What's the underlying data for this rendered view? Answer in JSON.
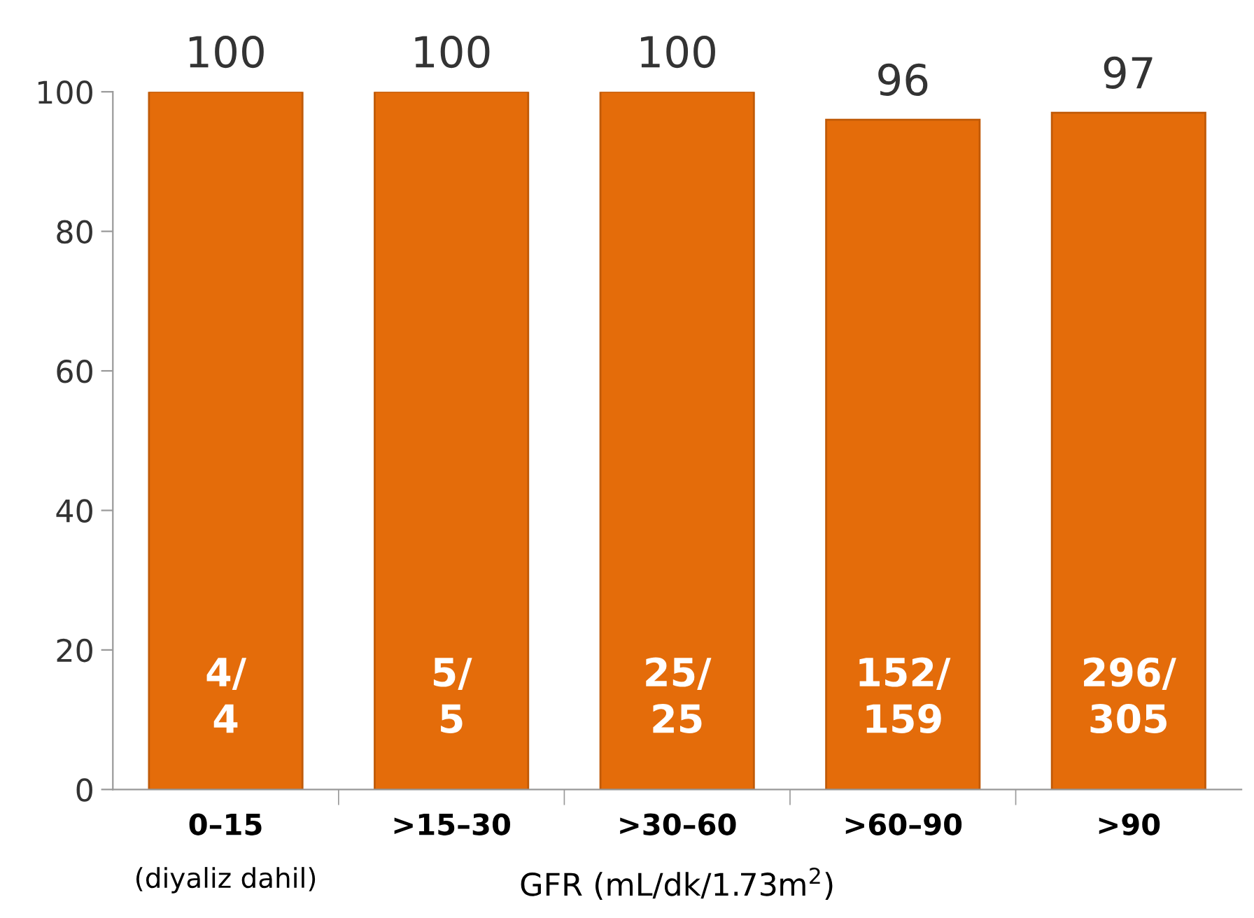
{
  "chart_data": {
    "type": "bar",
    "categories": [
      "0–15",
      ">15–30",
      ">30–60",
      ">60–90",
      ">90"
    ],
    "values": [
      100,
      100,
      100,
      96,
      97
    ],
    "color": "#e46c0a",
    "data_labels": true,
    "ylim": [
      0,
      100
    ],
    "yticks": [
      0,
      20,
      40,
      60,
      80,
      100
    ],
    "grid": false,
    "legend": false,
    "xlabel": "GFR (mL/dk/1.73m$^{2}$)",
    "annotations": [
      "4/\n4",
      "5/\n5",
      "25/\n25",
      "152/\n159",
      "296/\n305",
      "(diyaliz dahil)"
    ]
  }
}
